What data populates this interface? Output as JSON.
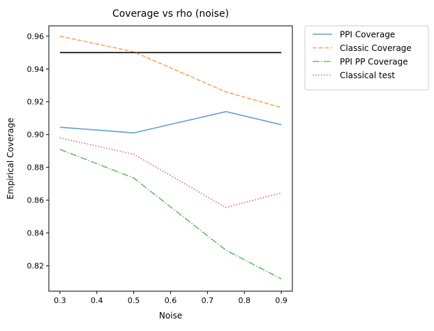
{
  "chart_data": {
    "type": "line",
    "title": "Coverage vs rho (noise)",
    "xlabel": "Noise",
    "ylabel": "Empirical Coverage",
    "x": [
      0.3,
      0.5,
      0.75,
      0.9
    ],
    "xlim": [
      0.27,
      0.93
    ],
    "ylim": [
      0.8045,
      0.9663
    ],
    "x_ticks": [
      0.3,
      0.4,
      0.5,
      0.6,
      0.7,
      0.8,
      0.9
    ],
    "x_tick_labels": [
      "0.3",
      "0.4",
      "0.5",
      "0.6",
      "0.7",
      "0.8",
      "0.9"
    ],
    "y_ticks": [
      0.82,
      0.84,
      0.86,
      0.88,
      0.9,
      0.92,
      0.94,
      0.96
    ],
    "y_tick_labels": [
      "0.82",
      "0.84",
      "0.86",
      "0.88",
      "0.90",
      "0.92",
      "0.94",
      "0.96"
    ],
    "grid": false,
    "legend_position": "outside-right",
    "series": [
      {
        "name": "PPI Coverage",
        "values": [
          0.9045,
          0.901,
          0.914,
          0.906
        ],
        "color": "#1f77b4",
        "style": "solid"
      },
      {
        "name": "Classic Coverage",
        "values": [
          0.96,
          0.9505,
          0.926,
          0.9165
        ],
        "color": "#ff7f0e",
        "style": "dashed"
      },
      {
        "name": "PPI PP Coverage",
        "values": [
          0.891,
          0.8735,
          0.8295,
          0.812
        ],
        "color": "#2ca02c",
        "style": "dashdot"
      },
      {
        "name": "Classical test",
        "values": [
          0.898,
          0.888,
          0.8555,
          0.8645
        ],
        "color": "#d62728",
        "style": "dotted"
      }
    ],
    "reference_line": {
      "y": 0.95,
      "x_from": 0.3,
      "x_to": 0.9,
      "color": "#000000"
    }
  }
}
